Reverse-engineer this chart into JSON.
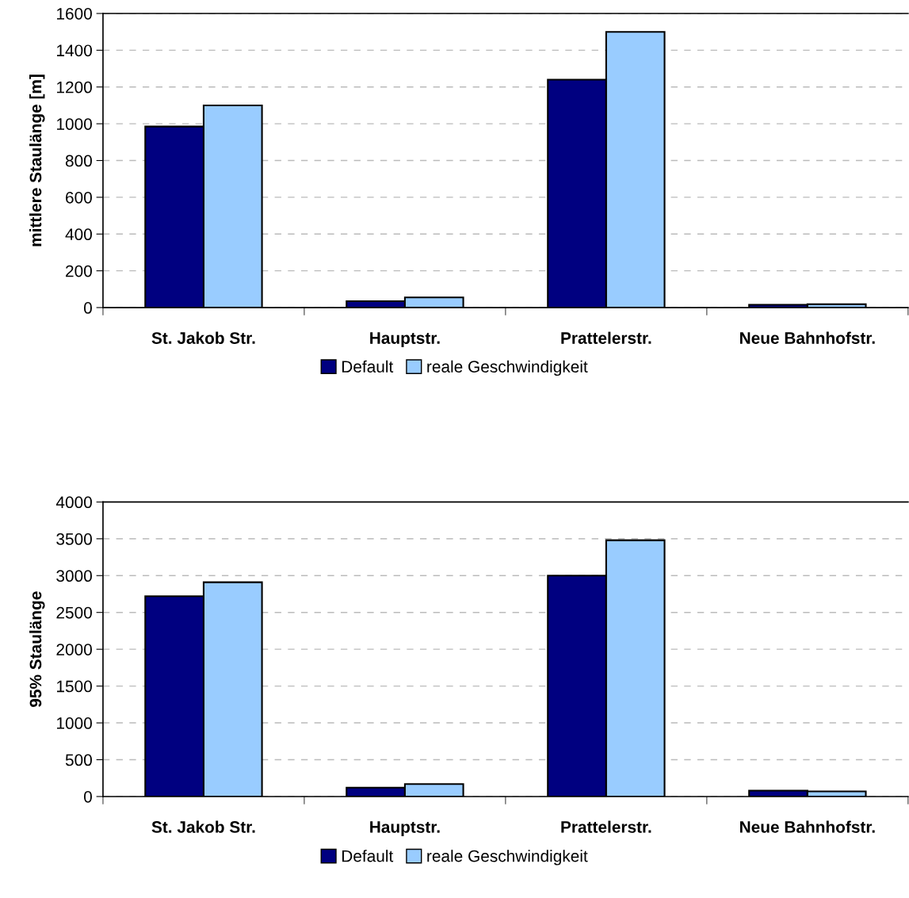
{
  "chart_data": [
    {
      "type": "bar",
      "ylabel": "mittlere Staulänge [m]",
      "categories": [
        "St. Jakob Str.",
        "Hauptstr.",
        "Prattelerstr.",
        "Neue Bahnhofstr."
      ],
      "ylim": [
        0,
        1600
      ],
      "yticks": [
        0,
        200,
        400,
        600,
        800,
        1000,
        1200,
        1400,
        1600
      ],
      "grid": "y",
      "legend": "bottom",
      "series": [
        {
          "name": "Default",
          "color": "#000080",
          "values": [
            985,
            35,
            1240,
            15
          ]
        },
        {
          "name": "reale Geschwindigkeit",
          "color": "#99ccff",
          "values": [
            1100,
            55,
            1500,
            18
          ]
        }
      ]
    },
    {
      "type": "bar",
      "ylabel": "95% Staulänge",
      "categories": [
        "St. Jakob Str.",
        "Hauptstr.",
        "Prattelerstr.",
        "Neue Bahnhofstr."
      ],
      "ylim": [
        0,
        4000
      ],
      "yticks": [
        0,
        500,
        1000,
        1500,
        2000,
        2500,
        3000,
        3500,
        4000
      ],
      "grid": "y",
      "legend": "bottom",
      "series": [
        {
          "name": "Default",
          "color": "#000080",
          "values": [
            2720,
            120,
            3000,
            80
          ]
        },
        {
          "name": "reale Geschwindigkeit",
          "color": "#99ccff",
          "values": [
            2910,
            170,
            3480,
            70
          ]
        }
      ]
    }
  ]
}
